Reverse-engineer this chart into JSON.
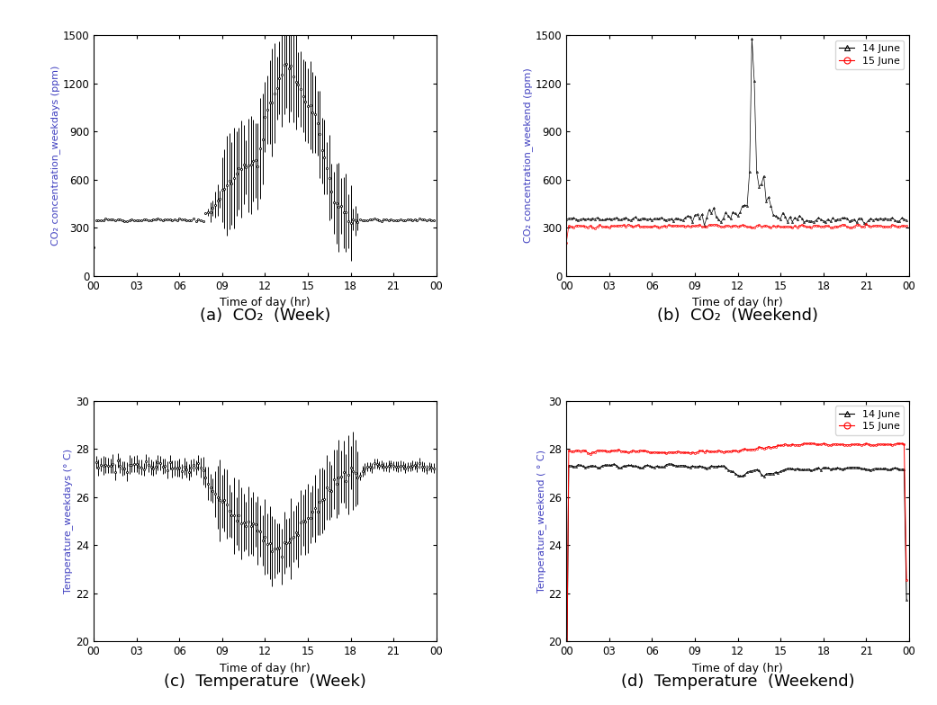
{
  "fig_width": 10.41,
  "fig_height": 7.84,
  "background_color": "#ffffff",
  "subplots": [
    {
      "label": "(a)  CO₂  (Week)",
      "ylabel": "CO₂ concentration_weekdays (ppm)",
      "ylabel_color": "#4040c0",
      "xlabel": "Time of day (hr)",
      "ylim": [
        0,
        1500
      ],
      "yticks": [
        0,
        300,
        600,
        900,
        1200,
        1500
      ],
      "xtick_labels": [
        "00",
        "03",
        "06",
        "09",
        "12",
        "15",
        "18",
        "21",
        "00"
      ]
    },
    {
      "label": "(b)  CO₂  (Weekend)",
      "ylabel": "CO₂ concentration_weekend (ppm)",
      "ylabel_color": "#4040c0",
      "xlabel": "Time of day (hr)",
      "ylim": [
        0,
        1500
      ],
      "yticks": [
        0,
        300,
        600,
        900,
        1200,
        1500
      ],
      "xtick_labels": [
        "00",
        "03",
        "06",
        "09",
        "12",
        "15",
        "18",
        "21",
        "00"
      ],
      "legend": [
        {
          "label": "14 June",
          "color": "black",
          "marker": "^"
        },
        {
          "label": "15 June",
          "color": "red",
          "marker": "o"
        }
      ]
    },
    {
      "label": "(c)  Temperature  (Week)",
      "ylabel": "Temperature_weekdays (° C)",
      "ylabel_color": "#4040c0",
      "xlabel": "Time of day (hr)",
      "ylim": [
        20,
        30
      ],
      "yticks": [
        20,
        22,
        24,
        26,
        28,
        30
      ],
      "xtick_labels": [
        "00",
        "03",
        "06",
        "09",
        "12",
        "15",
        "18",
        "21",
        "00"
      ]
    },
    {
      "label": "(d)  Temperature  (Weekend)",
      "ylabel": "Temperature_weekend ( ° C)",
      "ylabel_color": "#4040c0",
      "xlabel": "Time of day (hr)",
      "ylim": [
        20,
        30
      ],
      "yticks": [
        20,
        22,
        24,
        26,
        28,
        30
      ],
      "xtick_labels": [
        "00",
        "03",
        "06",
        "09",
        "12",
        "15",
        "18",
        "21",
        "00"
      ],
      "legend": [
        {
          "label": "14 June",
          "color": "black",
          "marker": "^"
        },
        {
          "label": "15 June",
          "color": "red",
          "marker": "o"
        }
      ]
    }
  ],
  "caption_fontsize": 13
}
